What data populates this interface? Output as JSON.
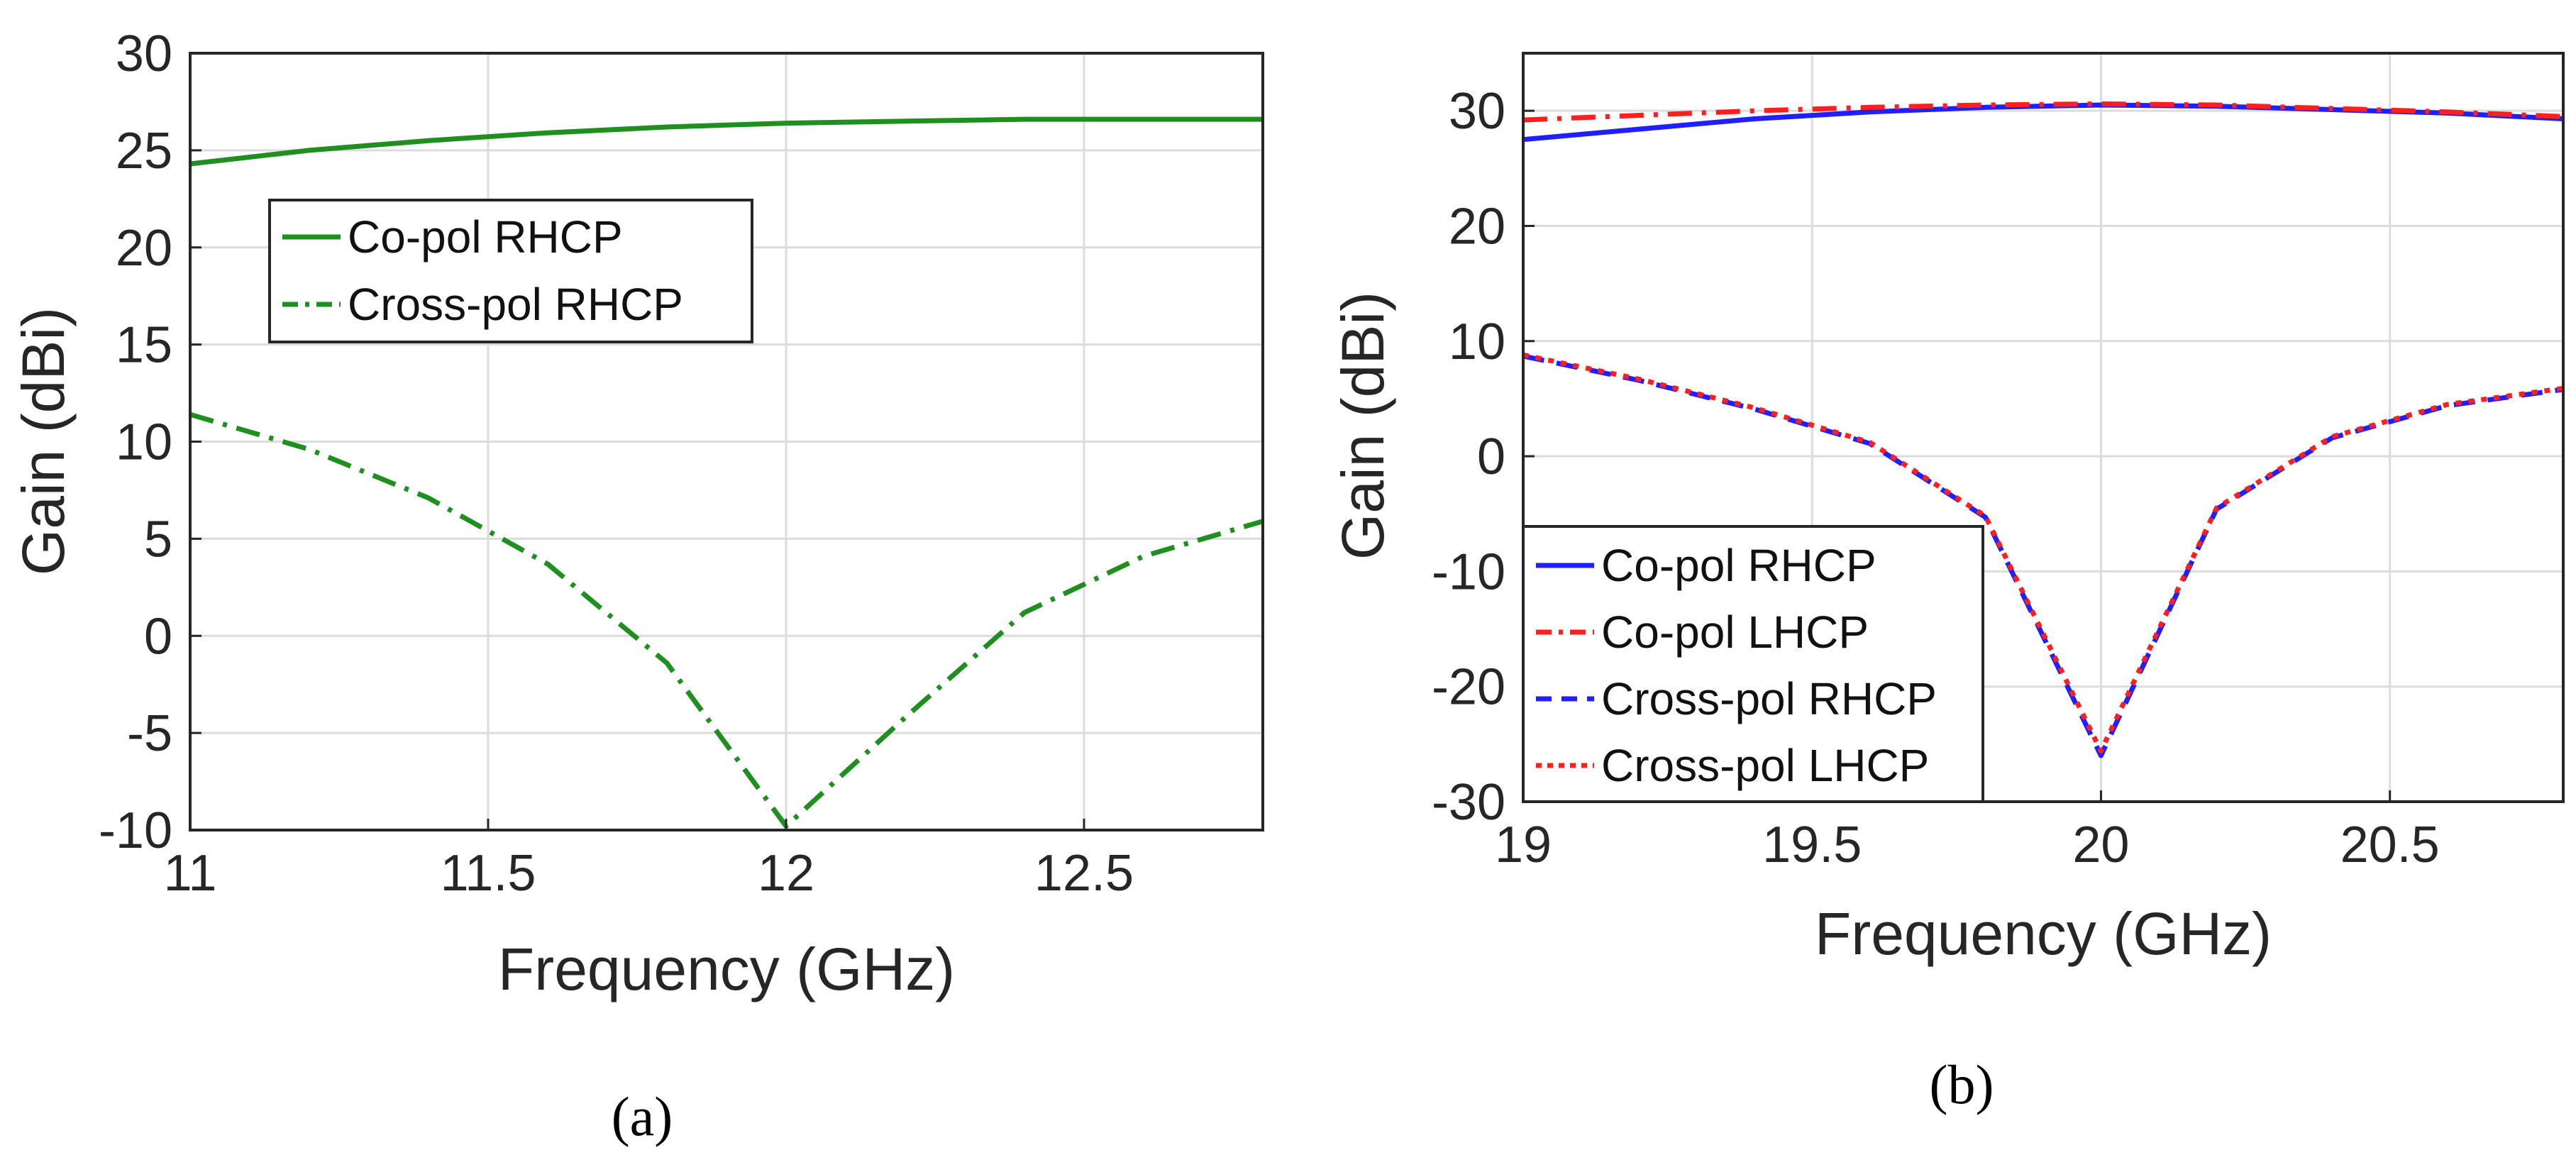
{
  "chart_data": [
    {
      "type": "line",
      "caption": "(a)",
      "xlabel": "Frequency (GHz)",
      "ylabel": "Gain (dBi)",
      "xlim": [
        11,
        12.8
      ],
      "ylim": [
        -10,
        30
      ],
      "xticks": [
        11,
        11.5,
        12,
        12.5
      ],
      "yticks": [
        -10,
        -5,
        0,
        5,
        10,
        15,
        20,
        25,
        30
      ],
      "grid": true,
      "legend": "upper-left inside",
      "series": [
        {
          "name": "Co-pol RHCP",
          "color": "#1f8f1f",
          "style": "solid",
          "x": [
            11,
            11.2,
            11.4,
            11.6,
            11.8,
            12,
            12.2,
            12.4,
            12.6,
            12.8
          ],
          "y": [
            24.3,
            25.0,
            25.5,
            25.9,
            26.2,
            26.4,
            26.5,
            26.6,
            26.6,
            26.6
          ]
        },
        {
          "name": "Cross-pol RHCP",
          "color": "#1f8f1f",
          "style": "dashdot",
          "x": [
            11,
            11.2,
            11.4,
            11.6,
            11.8,
            12,
            12.2,
            12.4,
            12.6,
            12.8
          ],
          "y": [
            11.4,
            9.6,
            7.1,
            3.7,
            -1.4,
            -9.8,
            -4.2,
            1.2,
            4.1,
            5.9
          ]
        }
      ]
    },
    {
      "type": "line",
      "caption": "(b)",
      "xlabel": "Frequency (GHz)",
      "ylabel": "Gain (dBi)",
      "xlim": [
        19,
        20.8
      ],
      "ylim": [
        -30,
        35
      ],
      "xticks": [
        19,
        19.5,
        20,
        20.5
      ],
      "yticks": [
        -30,
        -20,
        -10,
        0,
        10,
        20,
        30
      ],
      "grid": true,
      "legend": "lower-left inside",
      "series": [
        {
          "name": "Co-pol RHCP",
          "color": "#1f1fff",
          "style": "solid",
          "x": [
            19,
            19.2,
            19.4,
            19.6,
            19.8,
            20,
            20.2,
            20.4,
            20.6,
            20.8
          ],
          "y": [
            27.5,
            28.4,
            29.3,
            29.9,
            30.3,
            30.5,
            30.4,
            30.1,
            29.8,
            29.3
          ]
        },
        {
          "name": "Co-pol LHCP",
          "color": "#ff1f1f",
          "style": "dashdot",
          "x": [
            19,
            19.2,
            19.4,
            19.6,
            19.8,
            20,
            20.2,
            20.4,
            20.6,
            20.8
          ],
          "y": [
            29.2,
            29.6,
            30.0,
            30.3,
            30.5,
            30.6,
            30.5,
            30.2,
            29.9,
            29.5
          ]
        },
        {
          "name": "Cross-pol RHCP",
          "color": "#1f1fff",
          "style": "dashed",
          "x": [
            19,
            19.2,
            19.4,
            19.6,
            19.8,
            20,
            20.2,
            20.4,
            20.6,
            20.8
          ],
          "y": [
            8.7,
            6.6,
            4.1,
            1.1,
            -5.3,
            -26.0,
            -4.6,
            1.6,
            4.4,
            5.8
          ]
        },
        {
          "name": "Cross-pol LHCP",
          "color": "#ff1f1f",
          "style": "dotted",
          "x": [
            19,
            19.2,
            19.4,
            19.6,
            19.8,
            20,
            20.2,
            20.4,
            20.6,
            20.8
          ],
          "y": [
            8.8,
            6.7,
            4.2,
            1.2,
            -5.2,
            -25.6,
            -4.5,
            1.7,
            4.5,
            5.9
          ]
        }
      ]
    }
  ]
}
